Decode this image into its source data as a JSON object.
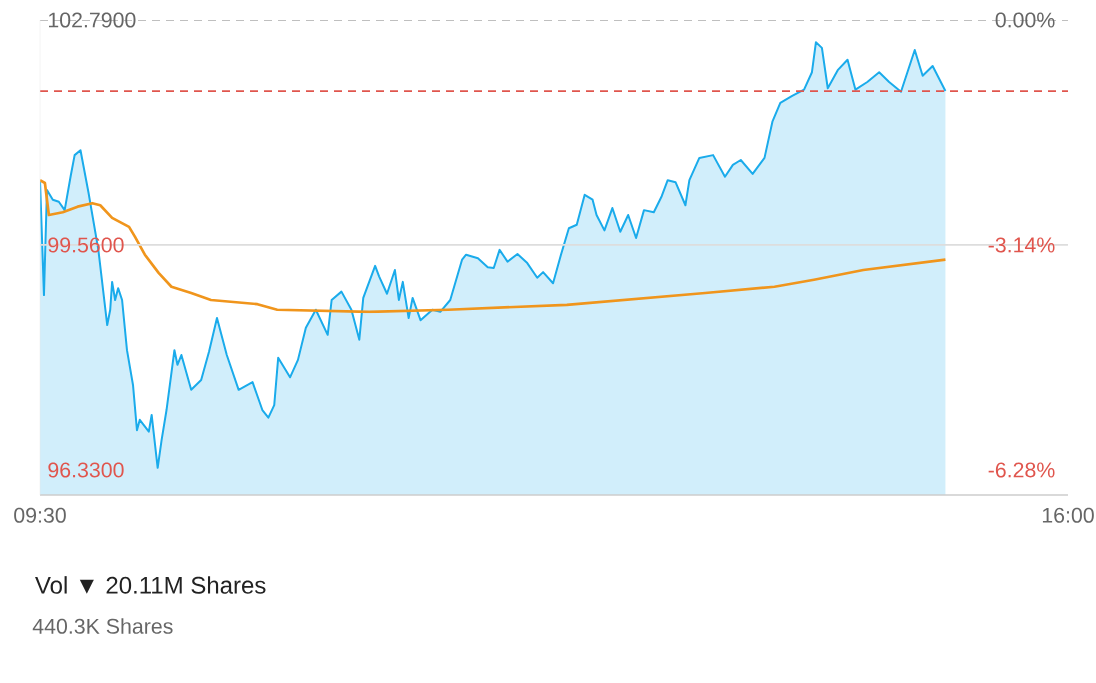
{
  "chart_data": {
    "type": "line",
    "marker": "none",
    "series": [
      {
        "type": "area",
        "color": "#1aabeb",
        "x": [
          9.5,
          9.525,
          9.544,
          9.581,
          9.619,
          9.656,
          9.694,
          9.719,
          9.756,
          9.806,
          9.869,
          9.925,
          9.944,
          9.956,
          9.975,
          9.994,
          10.019,
          10.05,
          10.088,
          10.113,
          10.131,
          10.188,
          10.206,
          10.244,
          10.269,
          10.3,
          10.35,
          10.369,
          10.394,
          10.456,
          10.519,
          10.569,
          10.619,
          10.681,
          10.756,
          10.844,
          10.906,
          10.944,
          10.981,
          11.006,
          11.081,
          11.131,
          11.181,
          11.244,
          11.319,
          11.344,
          11.406,
          11.469,
          11.519,
          11.544,
          11.619,
          11.644,
          11.694,
          11.744,
          11.769,
          11.794,
          11.831,
          11.856,
          11.906,
          11.981,
          12.031,
          12.094,
          12.169,
          12.194,
          12.269,
          12.331,
          12.369,
          12.406,
          12.456,
          12.519,
          12.581,
          12.644,
          12.681,
          12.744,
          12.794,
          12.844,
          12.894,
          12.944,
          12.994,
          13.019,
          13.069,
          13.119,
          13.169,
          13.219,
          13.269,
          13.319,
          13.381,
          13.431,
          13.469,
          13.519,
          13.581,
          13.606,
          13.669,
          13.756,
          13.831,
          13.881,
          13.931,
          14.006,
          14.081,
          14.131,
          14.181,
          14.256,
          14.331,
          14.381,
          14.406,
          14.444,
          14.481,
          14.544,
          14.606,
          14.656,
          14.731,
          14.806,
          14.869,
          14.944,
          15.031,
          15.081,
          15.144,
          15.225
        ],
        "values": [
          100.49,
          98.84,
          100.35,
          100.21,
          100.18,
          100.06,
          100.55,
          100.85,
          100.92,
          100.32,
          99.49,
          98.41,
          98.63,
          99.03,
          98.77,
          98.94,
          98.77,
          98.05,
          97.55,
          96.9,
          97.05,
          96.88,
          97.12,
          96.36,
          96.76,
          97.19,
          98.05,
          97.84,
          97.98,
          97.48,
          97.62,
          98.03,
          98.51,
          97.98,
          97.48,
          97.59,
          97.19,
          97.08,
          97.26,
          97.94,
          97.66,
          97.91,
          98.37,
          98.63,
          98.27,
          98.77,
          98.89,
          98.63,
          98.2,
          98.8,
          99.26,
          99.11,
          98.86,
          99.2,
          98.77,
          99.03,
          98.51,
          98.8,
          98.48,
          98.63,
          98.6,
          98.77,
          99.35,
          99.42,
          99.37,
          99.24,
          99.23,
          99.49,
          99.32,
          99.43,
          99.3,
          99.09,
          99.17,
          99.01,
          99.42,
          99.8,
          99.85,
          100.28,
          100.21,
          99.99,
          99.77,
          100.09,
          99.75,
          99.99,
          99.66,
          100.06,
          100.03,
          100.26,
          100.49,
          100.46,
          100.13,
          100.49,
          100.81,
          100.85,
          100.54,
          100.71,
          100.78,
          100.58,
          100.81,
          101.33,
          101.6,
          101.7,
          101.79,
          102.04,
          102.47,
          102.39,
          101.81,
          102.07,
          102.22,
          101.79,
          101.9,
          102.04,
          101.9,
          101.76,
          102.36,
          101.99,
          102.13,
          101.77
        ]
      },
      {
        "color": "#f0951c",
        "x": [
          9.5,
          9.531,
          9.556,
          9.644,
          9.738,
          9.831,
          9.881,
          9.956,
          10.063,
          10.1,
          10.163,
          10.25,
          10.331,
          10.456,
          10.581,
          10.875,
          11.0,
          11.581,
          12.081,
          12.831,
          13.706,
          14.144,
          14.394,
          14.706,
          15.225
        ],
        "values": [
          100.49,
          100.45,
          99.99,
          100.03,
          100.11,
          100.16,
          100.13,
          99.95,
          99.82,
          99.68,
          99.42,
          99.16,
          98.96,
          98.87,
          98.77,
          98.71,
          98.63,
          98.6,
          98.63,
          98.7,
          98.87,
          98.96,
          99.06,
          99.2,
          99.35
        ]
      }
    ],
    "xlim": [
      9.5,
      16
    ],
    "xticks": [
      {
        "value": 9.5,
        "label": "09:30"
      },
      {
        "value": 16,
        "label": "16:00"
      }
    ],
    "ylim": [
      95.97,
      102.79
    ],
    "yticks": [
      {
        "value": 102.79,
        "label": "102.7900"
      },
      {
        "value": 99.56,
        "label": "99.5600"
      },
      {
        "value": 96.33,
        "label": "96.3300"
      }
    ],
    "y2lim": [
      -6.63,
      0
    ],
    "y2ticks": [
      {
        "value": 0,
        "label": "0.00%"
      },
      {
        "value": -3.14,
        "label": "-3.14%"
      },
      {
        "value": -6.28,
        "label": "-6.28%"
      }
    ],
    "ref_lines": [
      {
        "axis": "y",
        "value": 102.79,
        "color": "#aaaaaa",
        "line_style": "dashed"
      },
      {
        "axis": "y",
        "value": 101.77,
        "color": "#e0554d",
        "line_style": "dashed"
      },
      {
        "axis": "y",
        "value": 99.56,
        "color": "#dddddd",
        "line_style": "solid"
      }
    ],
    "annotations": [
      "Vol ▼ 20.11M Shares",
      "440.3K Shares"
    ]
  }
}
